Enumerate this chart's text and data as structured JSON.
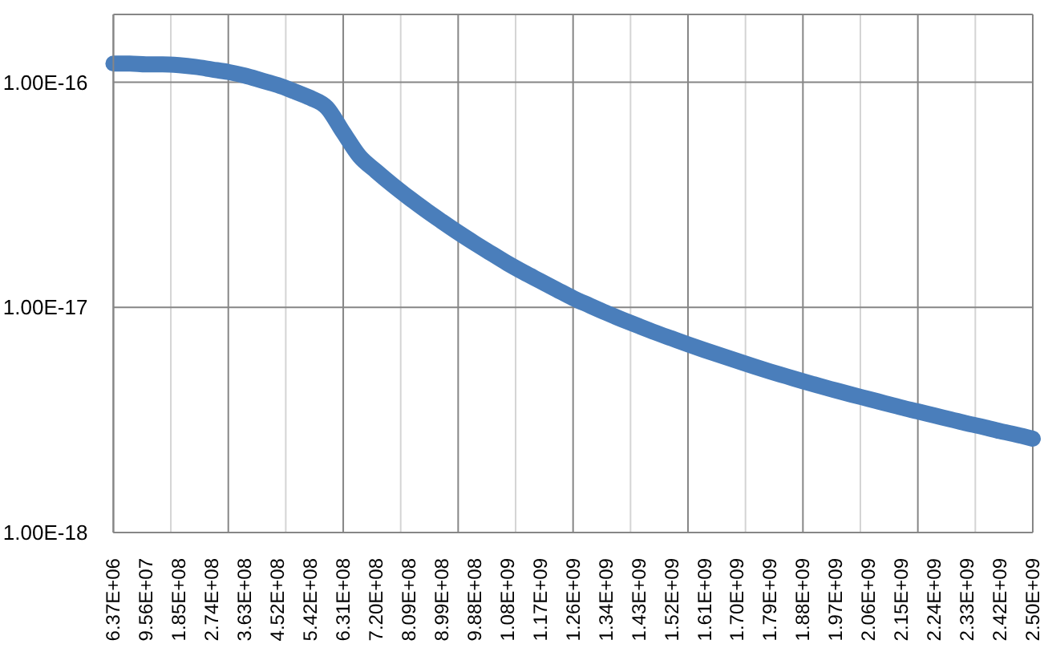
{
  "chart_data": {
    "type": "line",
    "categories": [
      "6.37E+06",
      null,
      "9.56E+07",
      null,
      "1.85E+08",
      null,
      "2.74E+08",
      null,
      "3.63E+08",
      null,
      "4.52E+08",
      null,
      "5.42E+08",
      null,
      "6.31E+08",
      null,
      "7.20E+08",
      null,
      "8.09E+08",
      null,
      "8.99E+08",
      null,
      "9.88E+08",
      null,
      "1.08E+09",
      null,
      "1.17E+09",
      null,
      "1.26E+09",
      null,
      "1.34E+09",
      null,
      "1.43E+09",
      null,
      "1.52E+09",
      null,
      "1.61E+09",
      null,
      "1.70E+09",
      null,
      "1.79E+09",
      null,
      "1.88E+09",
      null,
      "1.97E+09",
      null,
      "2.06E+09",
      null,
      "2.15E+09",
      null,
      "2.24E+09",
      null,
      "2.33E+09",
      null,
      "2.42E+09",
      null,
      "2.50E+09"
    ],
    "series": [
      {
        "color": "#4a7ebb",
        "values": [
          1.21e-16,
          1.21e-16,
          1.2e-16,
          1.2e-16,
          1.19e-16,
          1.17e-16,
          1.14e-16,
          1.11e-16,
          1.07e-16,
          1.02e-16,
          9.71e-17,
          9.12e-17,
          8.52e-17,
          7.72e-17,
          5.99e-17,
          4.68e-17,
          4.03e-17,
          3.5e-17,
          3.07e-17,
          2.71e-17,
          2.41e-17,
          2.15e-17,
          1.93e-17,
          1.74e-17,
          1.57e-17,
          1.43e-17,
          1.31e-17,
          1.2e-17,
          1.1e-17,
          1.02e-17,
          9.47e-18,
          8.83e-18,
          8.26e-18,
          7.74e-18,
          7.28e-18,
          6.85e-18,
          6.46e-18,
          6.11e-18,
          5.78e-18,
          5.47e-18,
          5.19e-18,
          4.94e-18,
          4.7e-18,
          4.48e-18,
          4.28e-18,
          4.09e-18,
          3.92e-18,
          3.75e-18,
          3.59e-18,
          3.45e-18,
          3.31e-18,
          3.18e-18,
          3.05e-18,
          2.94e-18,
          2.82e-18,
          2.72e-18,
          2.61e-18
        ]
      }
    ],
    "ylim": [
      1e-18,
      2e-16
    ],
    "yticks": [
      {
        "value": 1e-18,
        "label": "1.00E-18"
      },
      {
        "value": 1e-17,
        "label": "1.00E-17"
      },
      {
        "value": 1e-16,
        "label": "1.00E-16"
      }
    ],
    "log": true,
    "grid": true
  }
}
